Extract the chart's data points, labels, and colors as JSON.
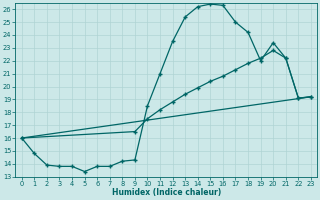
{
  "xlabel": "Humidex (Indice chaleur)",
  "bg_color": "#cce8e8",
  "grid_color": "#aacccc",
  "line_color": "#006666",
  "xlim": [
    -0.5,
    23.5
  ],
  "ylim": [
    13,
    26.5
  ],
  "xticks": [
    0,
    1,
    2,
    3,
    4,
    5,
    6,
    7,
    8,
    9,
    10,
    11,
    12,
    13,
    14,
    15,
    16,
    17,
    18,
    19,
    20,
    21,
    22,
    23
  ],
  "yticks": [
    13,
    14,
    15,
    16,
    17,
    18,
    19,
    20,
    21,
    22,
    23,
    24,
    25,
    26
  ],
  "line1_x": [
    0,
    1,
    2,
    3,
    4,
    5,
    6,
    7,
    8,
    9,
    10,
    11,
    12,
    13,
    14,
    15,
    16,
    17,
    18,
    19,
    20,
    21,
    22,
    23
  ],
  "line1_y": [
    16.0,
    14.8,
    13.9,
    13.8,
    13.8,
    13.4,
    13.8,
    13.8,
    14.2,
    14.3,
    18.5,
    21.0,
    23.5,
    25.4,
    26.2,
    26.4,
    26.3,
    25.0,
    24.2,
    22.0,
    23.4,
    22.2,
    19.1,
    19.2
  ],
  "line2_x": [
    0,
    23
  ],
  "line2_y": [
    16.0,
    19.2
  ],
  "line3_x": [
    0,
    9,
    10,
    11,
    12,
    13,
    14,
    15,
    16,
    17,
    18,
    19,
    20,
    21,
    22,
    23
  ],
  "line3_y": [
    16.0,
    16.5,
    17.5,
    18.2,
    18.8,
    19.4,
    19.9,
    20.4,
    20.8,
    21.3,
    21.8,
    22.2,
    22.8,
    22.2,
    19.1,
    19.2
  ],
  "marker": "+",
  "markersize": 3,
  "linewidth": 0.9
}
